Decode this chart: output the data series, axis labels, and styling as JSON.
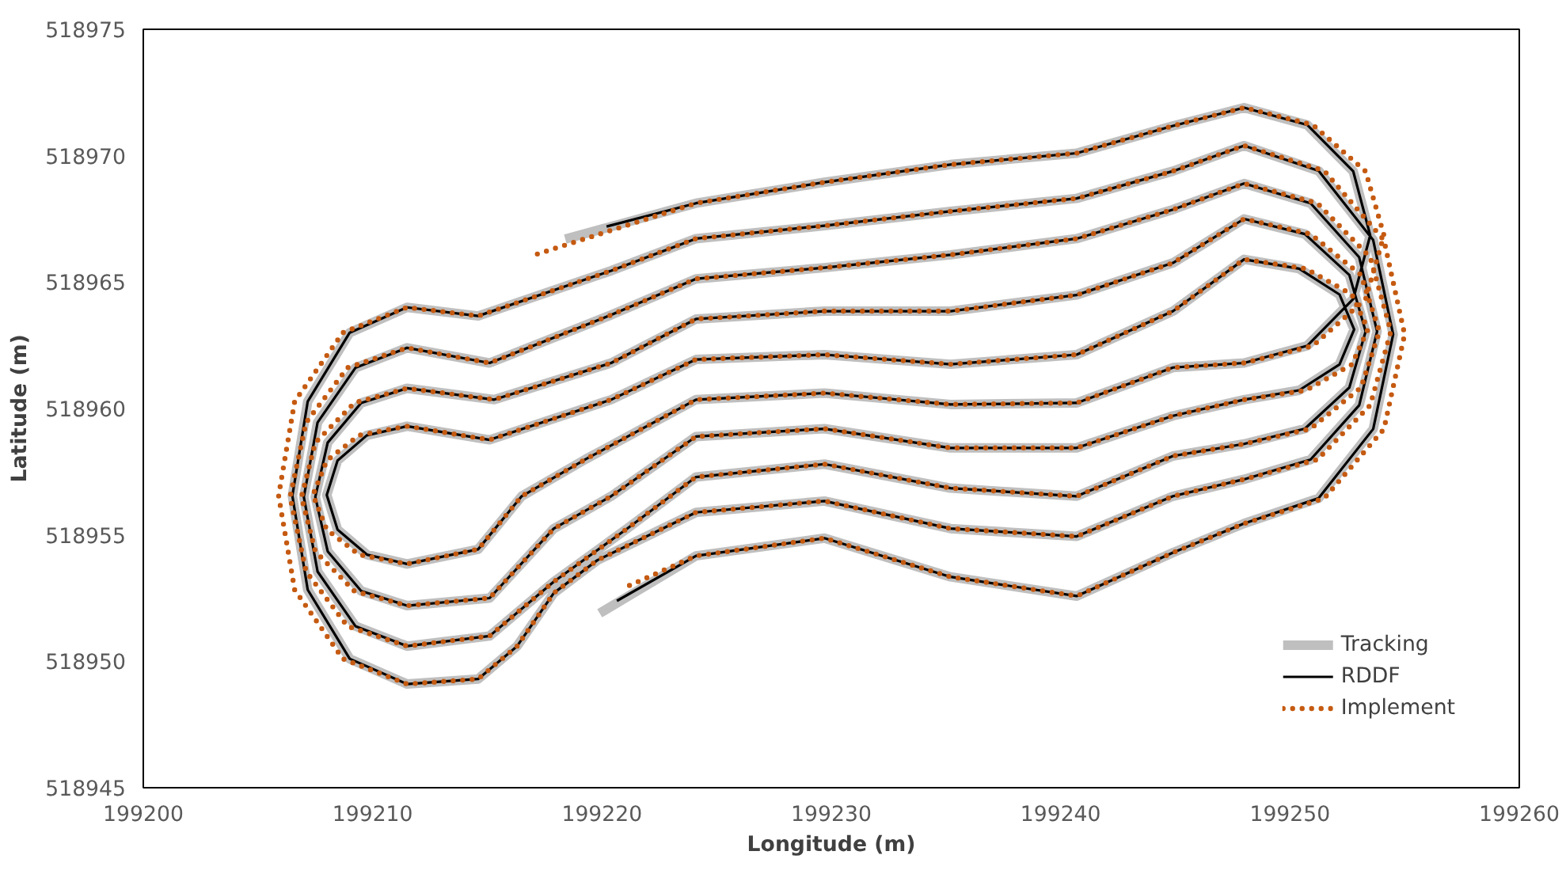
{
  "chart_data": {
    "type": "line",
    "xlabel": "Longitude (m)",
    "ylabel": "Latitude (m)",
    "xlim": [
      199200,
      199260
    ],
    "xticks": [
      199200,
      199210,
      199220,
      199230,
      199240,
      199250,
      199260
    ],
    "ylim": [
      518945,
      518975
    ],
    "yticks": [
      518945,
      518950,
      518955,
      518960,
      518965,
      518970,
      518975
    ],
    "grid": false,
    "legend": "bottom right",
    "marker": "none",
    "series": [
      {
        "name": "Tracking",
        "color": "#bfbfbf",
        "line_style": "solid",
        "x": [
          199219.9,
          199224.1,
          199229.7,
          199235.2,
          199240.7,
          199244.9,
          199248,
          199251.25,
          199253.63,
          199254.5,
          199253.63,
          199251.25,
          199248,
          199244.9,
          199240.7,
          199235.2,
          199229.7,
          199224.1,
          199220.4,
          199214.6,
          199211.5,
          199209.0,
          199207.17,
          199206.5,
          199207.17,
          199209.0,
          199211.5,
          199214.6,
          199216.3,
          199217.9,
          199219.8,
          199224.1,
          199229.7,
          199235.2,
          199240.7,
          199244.9,
          199248,
          199250.9,
          199253.02,
          199253.8,
          199253.02,
          199250.9,
          199248,
          199244.9,
          199240.7,
          199235.2,
          199229.7,
          199224.1,
          199220.4,
          199215.1,
          199211.5,
          199209.25,
          199207.6,
          199207.0,
          199207.6,
          199209.25,
          199211.5,
          199215.1,
          199217.9,
          199221.1,
          199224.1,
          199229.7,
          199235.2,
          199240.7,
          199244.9,
          199248,
          199250.65,
          199252.59,
          199253.3,
          199252.59,
          199250.65,
          199248,
          199244.9,
          199240.7,
          199235.2,
          199229.7,
          199224.1,
          199220.4,
          199215.3,
          199211.5,
          199209.5,
          199208.04,
          199207.5,
          199208.04,
          199209.5,
          199211.5,
          199215.1,
          199217.9,
          199220.4,
          199224.1,
          199229.7,
          199235.2,
          199240.7,
          199244.9,
          199248,
          199250.4,
          199252.16,
          199252.8,
          199252.16,
          199250.4,
          199248,
          199244.9,
          199240.7,
          199235.2,
          199229.7,
          199224.1,
          199220.4,
          199215.1,
          199211.5,
          199209.75,
          199208.47,
          199208.0,
          199208.47,
          199209.75,
          199211.5,
          199214.6,
          199216.5,
          199219.3,
          199224.1,
          199229.7,
          199235.2,
          199240.7,
          199244.9,
          199248,
          199250.75,
          199252.76,
          199253.5,
          199252.76,
          199250.75,
          199248,
          199244.9,
          199240.7,
          199235.2,
          199229.7,
          199224.1,
          199218.4
        ],
        "values": [
          518951.9,
          518954.17,
          518954.87,
          518953.34,
          518952.58,
          518954.3,
          518955.45,
          518956.45,
          518959.19,
          518962.93,
          518966.66,
          518969.4,
          518970.4,
          518969.39,
          518968.31,
          518967.8,
          518967.23,
          518966.72,
          518965.45,
          518963.66,
          518964.0,
          518963.0,
          518960.28,
          518956.55,
          518952.83,
          518950.1,
          518949.1,
          518949.3,
          518950.6,
          518952.7,
          518954.0,
          518955.89,
          518956.34,
          518955.25,
          518954.94,
          518956.53,
          518957.2,
          518957.98,
          518960.13,
          518963.05,
          518965.98,
          518968.12,
          518968.9,
          518967.87,
          518966.72,
          518966.08,
          518965.57,
          518965.13,
          518963.7,
          518961.8,
          518962.4,
          518961.61,
          518959.45,
          518956.5,
          518953.55,
          518951.39,
          518950.6,
          518951.0,
          518953.15,
          518955.25,
          518957.29,
          518957.8,
          518956.85,
          518956.53,
          518958.12,
          518958.6,
          518959.2,
          518960.83,
          518963.05,
          518965.28,
          518966.9,
          518967.5,
          518965.76,
          518964.49,
          518963.85,
          518963.85,
          518963.54,
          518961.8,
          518960.35,
          518960.8,
          518960.22,
          518958.65,
          518956.5,
          518954.35,
          518952.78,
          518952.2,
          518952.5,
          518955.25,
          518956.53,
          518958.89,
          518959.2,
          518958.44,
          518958.44,
          518959.71,
          518960.35,
          518960.72,
          518961.74,
          518963.13,
          518964.51,
          518965.53,
          518965.9,
          518963.85,
          518962.13,
          518961.75,
          518962.13,
          518961.94,
          518960.35,
          518958.76,
          518959.3,
          518958.94,
          518957.94,
          518956.58,
          518955.21,
          518954.22,
          518953.85,
          518954.43,
          518956.53,
          518958.0,
          518960.35,
          518960.61,
          518960.16,
          518960.22,
          518961.62,
          518961.8,
          518962.48,
          518964.33,
          518966.85,
          518969.38,
          518971.22,
          518971.9,
          518971.18,
          518970.1,
          518969.65,
          518968.95,
          518968.12,
          518966.7
        ]
      },
      {
        "name": "RDDF",
        "color": "#000000",
        "line_style": "solid",
        "x": [
          199220.65,
          199224.1,
          199229.7,
          199235.2,
          199240.7,
          199244.9,
          199248,
          199251.25,
          199253.63,
          199254.5,
          199253.63,
          199251.25,
          199248,
          199244.9,
          199240.7,
          199235.2,
          199229.7,
          199224.1,
          199220.4,
          199214.6,
          199211.5,
          199209.0,
          199207.17,
          199206.5,
          199207.17,
          199209.0,
          199211.5,
          199214.6,
          199216.3,
          199217.9,
          199219.8,
          199224.1,
          199229.7,
          199235.2,
          199240.7,
          199244.9,
          199248,
          199250.9,
          199253.02,
          199253.8,
          199253.02,
          199250.9,
          199248,
          199244.9,
          199240.7,
          199235.2,
          199229.7,
          199224.1,
          199220.4,
          199215.1,
          199211.5,
          199209.25,
          199207.6,
          199207.0,
          199207.6,
          199209.25,
          199211.5,
          199215.1,
          199217.9,
          199221.1,
          199224.1,
          199229.7,
          199235.2,
          199240.7,
          199244.9,
          199248,
          199250.65,
          199252.59,
          199253.3,
          199252.59,
          199250.65,
          199248,
          199244.9,
          199240.7,
          199235.2,
          199229.7,
          199224.1,
          199220.4,
          199215.3,
          199211.5,
          199209.5,
          199208.04,
          199207.5,
          199208.04,
          199209.5,
          199211.5,
          199215.1,
          199217.9,
          199220.4,
          199224.1,
          199229.7,
          199235.2,
          199240.7,
          199244.9,
          199248,
          199250.4,
          199252.16,
          199252.8,
          199252.16,
          199250.4,
          199248,
          199244.9,
          199240.7,
          199235.2,
          199229.7,
          199224.1,
          199220.4,
          199215.1,
          199211.5,
          199209.75,
          199208.47,
          199208.0,
          199208.47,
          199209.75,
          199211.5,
          199214.6,
          199216.5,
          199219.3,
          199224.1,
          199229.7,
          199235.2,
          199240.7,
          199244.9,
          199248,
          199250.75,
          199252.76,
          199253.5,
          199252.76,
          199250.75,
          199248,
          199244.9,
          199240.7,
          199235.2,
          199229.7,
          199224.1,
          199220.2
        ],
        "values": [
          518952.39,
          518954.17,
          518954.87,
          518953.34,
          518952.58,
          518954.3,
          518955.45,
          518956.45,
          518959.19,
          518962.93,
          518966.66,
          518969.4,
          518970.4,
          518969.39,
          518968.31,
          518967.8,
          518967.23,
          518966.72,
          518965.45,
          518963.66,
          518964.0,
          518963.0,
          518960.28,
          518956.55,
          518952.83,
          518950.1,
          518949.1,
          518949.3,
          518950.6,
          518952.7,
          518954.0,
          518955.89,
          518956.34,
          518955.25,
          518954.94,
          518956.53,
          518957.2,
          518957.98,
          518960.13,
          518963.05,
          518965.98,
          518968.12,
          518968.9,
          518967.87,
          518966.72,
          518966.08,
          518965.57,
          518965.13,
          518963.7,
          518961.8,
          518962.4,
          518961.61,
          518959.45,
          518956.5,
          518953.55,
          518951.39,
          518950.6,
          518951.0,
          518953.15,
          518955.25,
          518957.29,
          518957.8,
          518956.85,
          518956.53,
          518958.12,
          518958.6,
          518959.2,
          518960.83,
          518963.05,
          518965.28,
          518966.9,
          518967.5,
          518965.76,
          518964.49,
          518963.85,
          518963.85,
          518963.54,
          518961.8,
          518960.35,
          518960.8,
          518960.22,
          518958.65,
          518956.5,
          518954.35,
          518952.78,
          518952.2,
          518952.5,
          518955.25,
          518956.53,
          518958.89,
          518959.2,
          518958.44,
          518958.44,
          518959.71,
          518960.35,
          518960.72,
          518961.74,
          518963.13,
          518964.51,
          518965.53,
          518965.9,
          518963.85,
          518962.13,
          518961.75,
          518962.13,
          518961.94,
          518960.35,
          518958.76,
          518959.3,
          518958.94,
          518957.94,
          518956.58,
          518955.21,
          518954.22,
          518953.85,
          518954.43,
          518956.53,
          518958.0,
          518960.35,
          518960.61,
          518960.16,
          518960.22,
          518961.62,
          518961.8,
          518962.48,
          518964.33,
          518966.85,
          518969.38,
          518971.22,
          518971.9,
          518971.18,
          518970.1,
          518969.65,
          518968.95,
          518968.12,
          518967.2
        ]
      },
      {
        "name": "Implement",
        "color": "#c55a11",
        "line_style": "dotted",
        "x": [
          199221.2,
          199224.1,
          199229.7,
          199235.2,
          199240.7,
          199244.9,
          199248,
          199251.5,
          199254.1,
          199255.0,
          199254.1,
          199251.5,
          199248,
          199244.9,
          199240.7,
          199235.2,
          199229.7,
          199224.1,
          199220.4,
          199214.6,
          199211.5,
          199208.7,
          199206.6,
          199205.9,
          199206.6,
          199208.7,
          199211.5,
          199214.6,
          199216.3,
          199217.9,
          199219.8,
          199224.1,
          199229.7,
          199235.2,
          199240.7,
          199244.9,
          199248,
          199251.2,
          199253.5,
          199254.4,
          199253.5,
          199251.2,
          199248,
          199244.9,
          199240.7,
          199235.2,
          199229.7,
          199224.1,
          199220.4,
          199215.1,
          199211.5,
          199208.9,
          199207.1,
          199206.4,
          199207.1,
          199208.9,
          199211.5,
          199215.1,
          199217.9,
          199221.1,
          199224.1,
          199229.7,
          199235.2,
          199240.7,
          199244.9,
          199248,
          199250.9,
          199253.1,
          199253.9,
          199253.1,
          199250.9,
          199248,
          199244.9,
          199240.7,
          199235.2,
          199229.7,
          199224.1,
          199220.4,
          199215.3,
          199211.5,
          199209.2,
          199207.5,
          199206.9,
          199207.5,
          199209.2,
          199211.5,
          199215.1,
          199217.9,
          199220.4,
          199224.1,
          199229.7,
          199235.2,
          199240.7,
          199244.9,
          199248,
          199250.7,
          199252.7,
          199253.4,
          199252.7,
          199250.7,
          199248,
          199244.9,
          199240.7,
          199235.2,
          199229.7,
          199224.1,
          199220.4,
          199215.1,
          199211.5,
          199209.4,
          199208.0,
          199207.4,
          199208.0,
          199209.4,
          199211.5,
          199214.6,
          199216.5,
          199219.3,
          199224.1,
          199229.7,
          199235.2,
          199240.7,
          199244.9,
          199248,
          199251.0,
          199253.3,
          199254.1,
          199253.3,
          199251.0,
          199248,
          199244.9,
          199240.7,
          199235.2,
          199229.7,
          199224.1,
          199216.8
        ],
        "values": [
          518953.0,
          518954.17,
          518954.87,
          518953.34,
          518952.58,
          518954.3,
          518955.45,
          518956.45,
          518959.19,
          518962.93,
          518966.66,
          518969.4,
          518970.4,
          518969.39,
          518968.31,
          518967.8,
          518967.23,
          518966.72,
          518965.45,
          518963.66,
          518964.0,
          518963.0,
          518960.28,
          518956.55,
          518952.83,
          518950.1,
          518949.1,
          518949.3,
          518950.6,
          518952.7,
          518954.0,
          518955.89,
          518956.34,
          518955.25,
          518954.94,
          518956.53,
          518957.2,
          518957.98,
          518960.13,
          518963.05,
          518965.98,
          518968.12,
          518968.9,
          518967.87,
          518966.72,
          518966.08,
          518965.57,
          518965.13,
          518963.7,
          518961.8,
          518962.4,
          518961.61,
          518959.45,
          518956.5,
          518953.55,
          518951.39,
          518950.6,
          518951.0,
          518953.15,
          518955.25,
          518957.29,
          518957.8,
          518956.85,
          518956.53,
          518958.12,
          518958.6,
          518959.2,
          518960.83,
          518963.05,
          518965.28,
          518966.9,
          518967.5,
          518965.76,
          518964.49,
          518963.85,
          518963.85,
          518963.54,
          518961.8,
          518960.35,
          518960.8,
          518960.22,
          518958.65,
          518956.5,
          518954.35,
          518952.78,
          518952.2,
          518952.5,
          518955.25,
          518956.53,
          518958.89,
          518959.2,
          518958.44,
          518958.44,
          518959.71,
          518960.35,
          518960.72,
          518961.74,
          518963.13,
          518964.51,
          518965.53,
          518965.9,
          518963.85,
          518962.13,
          518961.75,
          518962.13,
          518961.94,
          518960.35,
          518958.76,
          518959.3,
          518958.94,
          518957.94,
          518956.58,
          518955.21,
          518954.22,
          518953.85,
          518954.43,
          518956.53,
          518958.0,
          518960.35,
          518960.61,
          518960.16,
          518960.22,
          518961.62,
          518961.8,
          518962.48,
          518964.33,
          518966.85,
          518969.38,
          518971.22,
          518971.9,
          518971.18,
          518970.1,
          518969.65,
          518968.95,
          518968.12,
          518966.0
        ]
      }
    ]
  }
}
